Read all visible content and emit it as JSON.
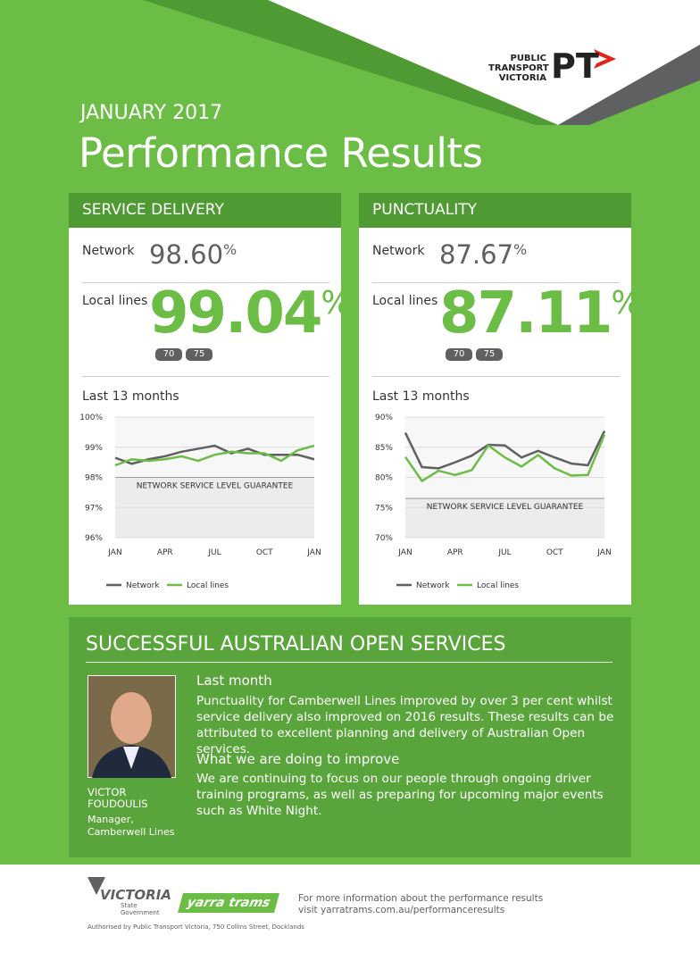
{
  "header": {
    "logo": {
      "lines": [
        "PUBLIC",
        "TRANSPORT",
        "VICTORIA"
      ],
      "mark": "PT"
    },
    "month": "JANUARY 2017",
    "title": "Performance Results"
  },
  "cards": [
    {
      "title": "SERVICE DELIVERY",
      "network_label": "Network",
      "network_value": "98.60",
      "unit": "%",
      "local_label": "Local lines",
      "local_value": "99.04",
      "routes": [
        "70",
        "75"
      ],
      "chart_heading": "Last 13 months"
    },
    {
      "title": "PUNCTUALITY",
      "network_label": "Network",
      "network_value": "87.67",
      "unit": "%",
      "local_label": "Local lines",
      "local_value": "87.11",
      "routes": [
        "70",
        "75"
      ],
      "chart_heading": "Last 13 months"
    }
  ],
  "chart_data": [
    {
      "type": "line",
      "categories": [
        "JAN",
        null,
        null,
        "APR",
        null,
        null,
        "JUL",
        null,
        null,
        "OCT",
        null,
        null,
        "JAN"
      ],
      "series": [
        {
          "name": "Network",
          "color": "#5f6062",
          "values": [
            98.65,
            98.45,
            98.6,
            98.7,
            98.85,
            98.95,
            99.05,
            98.8,
            98.95,
            98.75,
            98.75,
            98.75,
            98.6
          ]
        },
        {
          "name": "Local lines",
          "color": "#6cbd45",
          "values": [
            98.4,
            98.6,
            98.55,
            98.6,
            98.7,
            98.55,
            98.75,
            98.85,
            98.8,
            98.8,
            98.55,
            98.9,
            99.05
          ]
        }
      ],
      "ylim": [
        96,
        100
      ],
      "yticks": [
        {
          "value": 96,
          "label": "96%"
        },
        {
          "value": 97,
          "label": "97%"
        },
        {
          "value": 98,
          "label": "98%"
        },
        {
          "value": 99,
          "label": "99%"
        },
        {
          "value": 100,
          "label": "100%"
        }
      ],
      "grid": true,
      "annotation": {
        "text": "NETWORK SERVICE LEVEL GUARANTEE",
        "value": 98
      }
    },
    {
      "type": "line",
      "categories": [
        "JAN",
        null,
        null,
        "APR",
        null,
        null,
        "JUL",
        null,
        null,
        "OCT",
        null,
        null,
        "JAN"
      ],
      "series": [
        {
          "name": "Network",
          "color": "#5f6062",
          "values": [
            87.4,
            81.7,
            81.5,
            82.5,
            83.6,
            85.4,
            85.3,
            83.3,
            84.4,
            83.3,
            82.3,
            82.0,
            87.7
          ]
        },
        {
          "name": "Local lines",
          "color": "#6cbd45",
          "values": [
            83.4,
            79.4,
            81.1,
            80.4,
            81.2,
            85.3,
            83.3,
            81.8,
            83.7,
            81.5,
            80.3,
            80.4,
            87.1
          ]
        }
      ],
      "ylim": [
        70,
        90
      ],
      "yticks": [
        {
          "value": 70,
          "label": "70%"
        },
        {
          "value": 75,
          "label": "75%"
        },
        {
          "value": 80,
          "label": "80%"
        },
        {
          "value": 85,
          "label": "85%"
        },
        {
          "value": 90,
          "label": "90%"
        }
      ],
      "grid": true,
      "annotation": {
        "text": "NETWORK SERVICE LEVEL GUARANTEE",
        "value": 76.5
      }
    }
  ],
  "article": {
    "title": "SUCCESSFUL AUSTRALIAN OPEN SERVICES",
    "person_name": "VICTOR FOUDOULIS",
    "person_role": "Manager, Camberwell Lines",
    "heading_1": "Last month",
    "text_1": "Punctuality for Camberwell Lines improved by over 3 per cent whilst service delivery also improved on 2016 results. These results can be attributed to excellent planning and delivery of Australian Open services.",
    "heading_2": "What we are doing to improve",
    "text_2": "We are continuing to focus on our people through ongoing driver training programs, as well as preparing for upcoming major events such as White Night."
  },
  "footer": {
    "victoria": "VICTORIA",
    "government": "State Government",
    "yarra": "yarra trams",
    "info_1": "For more information about the performance results",
    "info_2": "visit yarratrams.com.au/performanceresults",
    "authorised": "Authorised by Public Transport Victoria, 750 Collins Street, Docklands"
  }
}
